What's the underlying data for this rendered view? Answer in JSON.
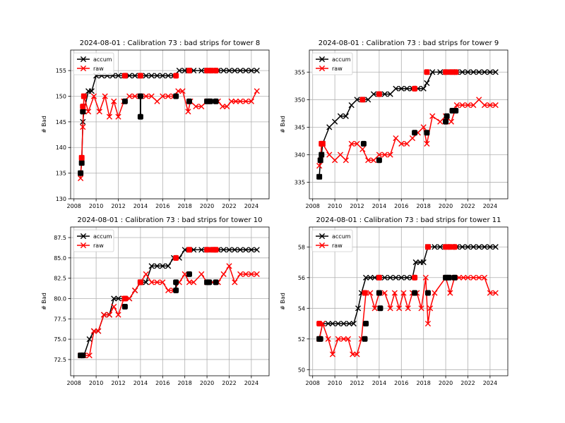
{
  "figure": {
    "background": "#ffffff",
    "colors": {
      "accum": "#000000",
      "raw": "#ff0000",
      "grid": "#b0b0b0"
    },
    "marker_legend": "x",
    "marker_calibration": "square"
  },
  "chart_data": [
    {
      "type": "line",
      "title": "2024-08-01 : Calibration 73 : bad strips for tower 8",
      "xlabel": "",
      "ylabel": "# Bad",
      "xlim": [
        2007.7,
        2025.6
      ],
      "ylim": [
        130,
        159
      ],
      "xticks": [
        "2008",
        "2010",
        "2012",
        "2014",
        "2016",
        "2018",
        "2020",
        "2022",
        "2024"
      ],
      "yticks": [
        "130",
        "135",
        "140",
        "145",
        "150",
        "155"
      ],
      "grid": true,
      "legend": {
        "position": "top-left",
        "entries": [
          "accum",
          "raw"
        ]
      },
      "series": [
        {
          "name": "accum",
          "color": "#000000",
          "x": [
            2008.6,
            2008.7,
            2008.8,
            2008.9,
            2009.3,
            2009.6,
            2010.0,
            2010.5,
            2011.0,
            2011.5,
            2012.0,
            2012.5,
            2013.0,
            2013.5,
            2014.0,
            2014.5,
            2015.0,
            2015.5,
            2016.0,
            2016.5,
            2017.0,
            2017.5,
            2018.0,
            2018.3,
            2018.8,
            2019.5,
            2020.0,
            2020.5,
            2021.0,
            2021.5,
            2022.0,
            2022.5,
            2023.0,
            2023.5,
            2024.0,
            2024.5
          ],
          "y": [
            135,
            137,
            145,
            147,
            151,
            151,
            154,
            154,
            154,
            154,
            154,
            154,
            154,
            154,
            154,
            154,
            154,
            154,
            154,
            154,
            154,
            155,
            155,
            155,
            155,
            155,
            155,
            155,
            155,
            155,
            155,
            155,
            155,
            155,
            155,
            155
          ]
        },
        {
          "name": "raw",
          "color": "#ff0000",
          "x": [
            2008.6,
            2008.7,
            2008.8,
            2008.9,
            2009.3,
            2009.8,
            2010.3,
            2010.8,
            2011.2,
            2011.6,
            2012.0,
            2012.5,
            2013.0,
            2013.5,
            2014.0,
            2014.5,
            2015.0,
            2015.5,
            2016.0,
            2016.5,
            2017.0,
            2017.4,
            2017.8,
            2018.3,
            2018.5,
            2019.0,
            2019.5,
            2020.0,
            2020.5,
            2021.0,
            2021.4,
            2021.8,
            2022.2,
            2022.6,
            2023.0,
            2023.5,
            2024.0,
            2024.5
          ],
          "y": [
            134,
            138,
            144,
            150,
            147,
            150,
            147,
            150,
            146,
            149,
            146,
            149,
            150,
            150,
            150,
            150,
            150,
            149,
            150,
            150,
            150,
            151,
            151,
            147,
            149,
            148,
            148,
            149,
            149,
            149,
            148,
            148,
            149,
            149,
            149,
            149,
            149,
            151
          ]
        },
        {
          "name": "",
          "color": "#000000",
          "marker": "square",
          "x": [
            2008.6,
            2008.7,
            2008.8,
            2012.6,
            2014.0,
            2014.0,
            2017.2,
            2018.4,
            2020.0,
            2020.3,
            2020.8
          ],
          "y": [
            135,
            137,
            147,
            149,
            150,
            146,
            150,
            149,
            149,
            149,
            149
          ]
        },
        {
          "name": "",
          "color": "#ff0000",
          "marker": "square",
          "x": [
            2008.7,
            2008.8,
            2008.9,
            2012.6,
            2014.0,
            2017.2,
            2018.4,
            2020.0,
            2020.4,
            2020.8
          ],
          "y": [
            138,
            148,
            150,
            154,
            154,
            154,
            155,
            155,
            155,
            155
          ]
        }
      ]
    },
    {
      "type": "line",
      "title": "2024-08-01 : Calibration 73 : bad strips for tower 9",
      "xlabel": "",
      "ylabel": "# Bad",
      "xlim": [
        2007.7,
        2025.6
      ],
      "ylim": [
        332,
        359
      ],
      "xticks": [
        "2008",
        "2010",
        "2012",
        "2014",
        "2016",
        "2018",
        "2020",
        "2022",
        "2024"
      ],
      "yticks": [
        "335",
        "340",
        "345",
        "350",
        "355"
      ],
      "grid": true,
      "legend": {
        "position": "top-left",
        "entries": [
          "accum",
          "raw"
        ]
      },
      "series": [
        {
          "name": "accum",
          "color": "#000000",
          "x": [
            2008.6,
            2008.7,
            2008.8,
            2008.9,
            2009.5,
            2010.0,
            2010.5,
            2011.0,
            2011.5,
            2012.0,
            2012.5,
            2013.0,
            2013.5,
            2014.0,
            2014.5,
            2015.0,
            2015.5,
            2016.0,
            2016.5,
            2017.0,
            2017.5,
            2018.0,
            2018.3,
            2018.8,
            2019.5,
            2020.0,
            2020.5,
            2021.0,
            2021.5,
            2022.0,
            2022.5,
            2023.0,
            2023.5,
            2024.0,
            2024.5
          ],
          "y": [
            336,
            339,
            340,
            342,
            345,
            346,
            347,
            347,
            349,
            350,
            350,
            350,
            351,
            351,
            351,
            351,
            352,
            352,
            352,
            352,
            352,
            352,
            353,
            355,
            355,
            355,
            355,
            355,
            355,
            355,
            355,
            355,
            355,
            355,
            355
          ]
        },
        {
          "name": "raw",
          "color": "#ff0000",
          "x": [
            2008.6,
            2008.7,
            2008.8,
            2008.9,
            2009.5,
            2010.0,
            2010.5,
            2011.0,
            2011.5,
            2012.0,
            2012.5,
            2013.0,
            2013.5,
            2014.0,
            2014.5,
            2015.0,
            2015.5,
            2016.0,
            2016.5,
            2017.0,
            2017.5,
            2018.0,
            2018.3,
            2018.8,
            2019.5,
            2020.0,
            2020.5,
            2021.0,
            2021.5,
            2022.0,
            2022.5,
            2023.0,
            2023.5,
            2024.0,
            2024.5
          ],
          "y": [
            338,
            339,
            342,
            342,
            340,
            339,
            340,
            339,
            342,
            342,
            341,
            339,
            339,
            340,
            340,
            340,
            343,
            342,
            342,
            343,
            344,
            345,
            342,
            347,
            346,
            347,
            346,
            349,
            349,
            349,
            349,
            350,
            349,
            349,
            349
          ]
        },
        {
          "name": "",
          "color": "#000000",
          "marker": "square",
          "x": [
            2008.6,
            2008.7,
            2008.8,
            2012.6,
            2014.0,
            2017.2,
            2018.3,
            2020.0,
            2020.1,
            2020.6,
            2020.9
          ],
          "y": [
            336,
            339,
            340,
            342,
            339,
            344,
            344,
            346,
            347,
            348,
            348
          ]
        },
        {
          "name": "",
          "color": "#ff0000",
          "marker": "square",
          "x": [
            2008.8,
            2008.9,
            2012.5,
            2014.0,
            2017.2,
            2018.3,
            2020.0,
            2020.5,
            2020.9
          ],
          "y": [
            342,
            342,
            350,
            351,
            352,
            355,
            355,
            355,
            355
          ]
        }
      ]
    },
    {
      "type": "line",
      "title": "2024-08-01 : Calibration 73 : bad strips for tower 10",
      "xlabel": "",
      "ylabel": "# Bad",
      "xlim": [
        2007.7,
        2025.6
      ],
      "ylim": [
        70.5,
        88.8
      ],
      "xticks": [
        "2008",
        "2010",
        "2012",
        "2014",
        "2016",
        "2018",
        "2020",
        "2022",
        "2024"
      ],
      "yticks": [
        "72.5",
        "75.0",
        "77.5",
        "80.0",
        "82.5",
        "85.0",
        "87.5"
      ],
      "grid": true,
      "legend": {
        "position": "top-left",
        "entries": [
          "accum",
          "raw"
        ]
      },
      "series": [
        {
          "name": "accum",
          "color": "#000000",
          "x": [
            2008.6,
            2008.9,
            2009.4,
            2009.8,
            2010.2,
            2010.7,
            2011.2,
            2011.6,
            2012.0,
            2012.5,
            2013.0,
            2013.5,
            2014.0,
            2014.5,
            2015.0,
            2015.5,
            2016.0,
            2016.5,
            2017.0,
            2017.5,
            2018.0,
            2018.4,
            2018.8,
            2019.5,
            2020.0,
            2020.5,
            2021.0,
            2021.5,
            2022.0,
            2022.5,
            2023.0,
            2023.5,
            2024.0,
            2024.5
          ],
          "y": [
            73,
            73,
            75,
            76,
            76,
            78,
            78,
            80,
            80,
            80,
            80,
            81,
            82,
            82,
            84,
            84,
            84,
            84,
            85,
            85,
            86,
            86,
            86,
            86,
            86,
            86,
            86,
            86,
            86,
            86,
            86,
            86,
            86,
            86
          ]
        },
        {
          "name": "raw",
          "color": "#ff0000",
          "x": [
            2008.6,
            2008.9,
            2009.4,
            2009.8,
            2010.2,
            2010.7,
            2011.2,
            2011.6,
            2012.0,
            2012.5,
            2013.0,
            2013.5,
            2014.0,
            2014.5,
            2015.0,
            2015.5,
            2016.0,
            2016.5,
            2017.0,
            2017.5,
            2018.0,
            2018.4,
            2018.8,
            2019.5,
            2020.0,
            2020.5,
            2021.0,
            2021.5,
            2022.0,
            2022.5,
            2023.0,
            2023.5,
            2024.0,
            2024.5
          ],
          "y": [
            73,
            73,
            73,
            76,
            76,
            78,
            78,
            79,
            78,
            80,
            80,
            81,
            82,
            83,
            82,
            82,
            82,
            81,
            81,
            82,
            83,
            82,
            82,
            83,
            82,
            82,
            82,
            83,
            84,
            82,
            83,
            83,
            83,
            83
          ]
        },
        {
          "name": "",
          "color": "#000000",
          "marker": "square",
          "x": [
            2008.6,
            2008.8,
            2012.6,
            2014.0,
            2017.2,
            2017.2,
            2018.4,
            2020.0,
            2020.2,
            2020.8
          ],
          "y": [
            73,
            73,
            79,
            82,
            81,
            82,
            83,
            82,
            82,
            82
          ]
        },
        {
          "name": "",
          "color": "#ff0000",
          "marker": "square",
          "x": [
            2012.6,
            2014.0,
            2017.2,
            2018.4,
            2020.0,
            2020.5,
            2020.8
          ],
          "y": [
            80,
            82,
            85,
            86,
            86,
            86,
            86
          ]
        }
      ]
    },
    {
      "type": "line",
      "title": "2024-08-01 : Calibration 73 : bad strips for tower 11",
      "xlabel": "",
      "ylabel": "# Bad",
      "xlim": [
        2007.7,
        2025.6
      ],
      "ylim": [
        49.6,
        59.3
      ],
      "xticks": [
        "2008",
        "2010",
        "2012",
        "2014",
        "2016",
        "2018",
        "2020",
        "2022",
        "2024"
      ],
      "yticks": [
        "50",
        "52",
        "54",
        "56",
        "58"
      ],
      "grid": true,
      "legend": {
        "position": "top-left",
        "entries": [
          "accum",
          "raw"
        ]
      },
      "series": [
        {
          "name": "accum",
          "color": "#000000",
          "x": [
            2008.6,
            2008.9,
            2009.4,
            2009.8,
            2010.3,
            2010.8,
            2011.3,
            2011.7,
            2012.1,
            2012.4,
            2012.8,
            2013.2,
            2013.6,
            2014.0,
            2014.5,
            2015.0,
            2015.5,
            2016.0,
            2016.5,
            2017.0,
            2017.3,
            2017.7,
            2018.0,
            2018.4,
            2019.0,
            2019.5,
            2020.0,
            2020.5,
            2021.0,
            2021.5,
            2022.0,
            2022.5,
            2023.0,
            2023.5,
            2024.0,
            2024.5
          ],
          "y": [
            52,
            53,
            53,
            53,
            53,
            53,
            53,
            53,
            54,
            55,
            56,
            56,
            56,
            56,
            56,
            56,
            56,
            56,
            56,
            56,
            57,
            57,
            57,
            58,
            58,
            58,
            58,
            58,
            58,
            58,
            58,
            58,
            58,
            58,
            58,
            58
          ]
        },
        {
          "name": "raw",
          "color": "#ff0000",
          "x": [
            2008.6,
            2008.9,
            2009.4,
            2009.8,
            2010.3,
            2010.8,
            2011.2,
            2011.6,
            2012.0,
            2012.4,
            2012.8,
            2013.2,
            2013.6,
            2014.0,
            2014.5,
            2015.0,
            2015.4,
            2015.8,
            2016.2,
            2016.6,
            2017.0,
            2017.4,
            2017.8,
            2018.2,
            2018.4,
            2018.6,
            2019.0,
            2020.0,
            2020.4,
            2020.8,
            2021.2,
            2021.6,
            2022.0,
            2022.5,
            2023.0,
            2023.5,
            2024.0,
            2024.5
          ],
          "y": [
            52,
            53,
            52,
            51,
            52,
            52,
            52,
            51,
            51,
            52,
            55,
            55,
            54,
            55,
            55,
            54,
            55,
            54,
            55,
            54,
            55,
            55,
            54,
            56,
            53,
            54,
            55,
            56,
            55,
            56,
            56,
            56,
            56,
            56,
            56,
            56,
            55,
            55
          ]
        },
        {
          "name": "",
          "color": "#000000",
          "marker": "square",
          "x": [
            2008.6,
            2008.7,
            2012.7,
            2012.8,
            2014.0,
            2014.1,
            2017.2,
            2018.4,
            2020.0,
            2020.3,
            2020.8
          ],
          "y": [
            52,
            52,
            52,
            53,
            55,
            54,
            55,
            55,
            56,
            56,
            56
          ]
        },
        {
          "name": "",
          "color": "#ff0000",
          "marker": "square",
          "x": [
            2008.6,
            2012.7,
            2014.0,
            2017.2,
            2018.4,
            2020.0,
            2020.4,
            2020.8
          ],
          "y": [
            53,
            55,
            56,
            56,
            58,
            58,
            58,
            58
          ]
        }
      ]
    }
  ]
}
